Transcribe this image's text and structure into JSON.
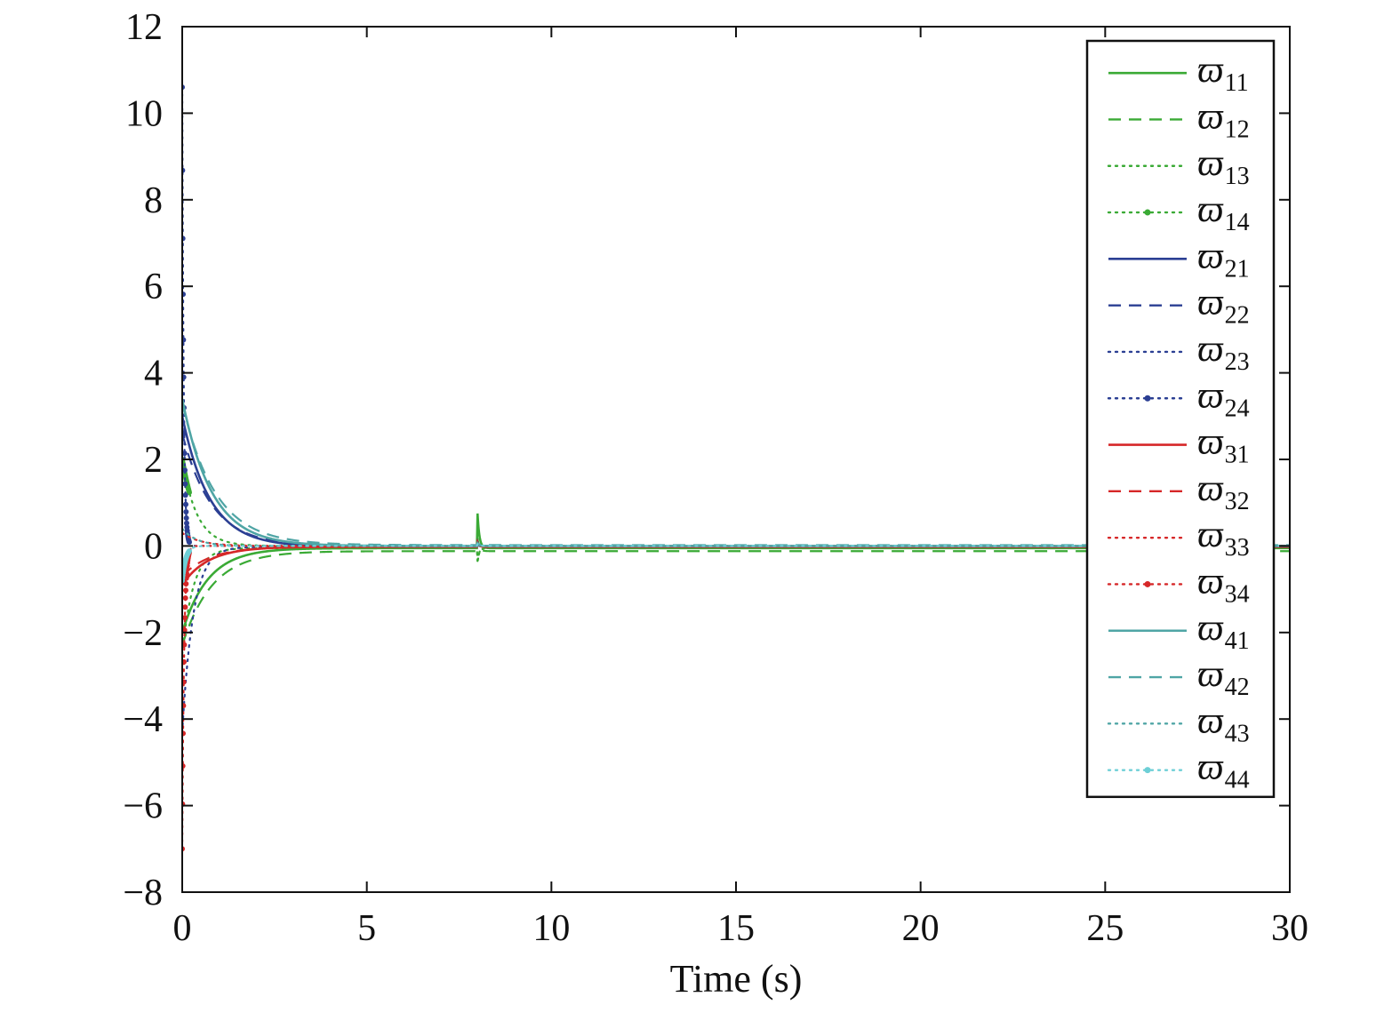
{
  "chart_data": {
    "type": "line",
    "title": "",
    "xlabel": "Time (s)",
    "ylabel": "",
    "xlim": [
      0,
      30
    ],
    "ylim": [
      -8,
      12
    ],
    "xticks": [
      0,
      5,
      10,
      15,
      20,
      25,
      30
    ],
    "yticks": [
      -8,
      -6,
      -4,
      -2,
      0,
      2,
      4,
      6,
      8,
      10,
      12
    ],
    "xtick_labels": [
      "0",
      "5",
      "10",
      "15",
      "20",
      "25",
      "30"
    ],
    "ytick_labels": [
      "−8",
      "−6",
      "−4",
      "−2",
      "0",
      "2",
      "4",
      "6",
      "8",
      "10",
      "12"
    ],
    "grid": false,
    "legend_position": "top-right",
    "event_time": 8,
    "series": [
      {
        "name": "ϖ",
        "sub": "11",
        "color": "#3aaa35",
        "style": "solid",
        "initial": -2.0,
        "tau": 0.7,
        "final": -0.05,
        "spike": 0.8
      },
      {
        "name": "ϖ",
        "sub": "12",
        "color": "#3aaa35",
        "style": "dashed",
        "initial": -2.3,
        "tau": 0.8,
        "final": -0.12,
        "spike": 0.3
      },
      {
        "name": "ϖ",
        "sub": "13",
        "color": "#3aaa35",
        "style": "dotted",
        "initial": -2.5,
        "tau": 0.3,
        "final": -0.05,
        "spike": -0.3
      },
      {
        "name": "ϖ",
        "sub": "14",
        "color": "#3aaa35",
        "style": "dotted-marker",
        "initial": 2.0,
        "tau": 0.4,
        "final": 0.0,
        "spike": -0.4
      },
      {
        "name": "ϖ",
        "sub": "21",
        "color": "#2b3f93",
        "style": "solid",
        "initial": 3.0,
        "tau": 0.75,
        "final": -0.02,
        "spike": 0.1
      },
      {
        "name": "ϖ",
        "sub": "22",
        "color": "#2b3f93",
        "style": "dashed",
        "initial": 2.6,
        "tau": 0.8,
        "final": 0.0,
        "spike": 0.1
      },
      {
        "name": "ϖ",
        "sub": "23",
        "color": "#2b3f93",
        "style": "dotted",
        "initial": -4.3,
        "tau": 0.3,
        "final": -0.02,
        "spike": 0.05
      },
      {
        "name": "ϖ",
        "sub": "24",
        "color": "#2b3f93",
        "style": "dotted-marker",
        "initial": 10.6,
        "tau": 0.04,
        "final": 0.0,
        "spike": 0.05
      },
      {
        "name": "ϖ",
        "sub": "31",
        "color": "#d62728",
        "style": "solid",
        "initial": -0.9,
        "tau": 0.7,
        "final": -0.02,
        "spike": 0.1
      },
      {
        "name": "ϖ",
        "sub": "32",
        "color": "#d62728",
        "style": "dashed",
        "initial": -0.7,
        "tau": 0.75,
        "final": -0.02,
        "spike": 0.05
      },
      {
        "name": "ϖ",
        "sub": "33",
        "color": "#d62728",
        "style": "dotted",
        "initial": 0.3,
        "tau": 0.5,
        "final": 0.0,
        "spike": 0.05
      },
      {
        "name": "ϖ",
        "sub": "34",
        "color": "#d62728",
        "style": "dotted-marker",
        "initial": -7.0,
        "tau": 0.05,
        "final": 0.0,
        "spike": 0.05
      },
      {
        "name": "ϖ",
        "sub": "41",
        "color": "#4fa5a5",
        "style": "solid",
        "initial": 3.4,
        "tau": 0.8,
        "final": 0.0,
        "spike": 0.05
      },
      {
        "name": "ϖ",
        "sub": "42",
        "color": "#4fa5a5",
        "style": "dashed",
        "initial": 3.3,
        "tau": 0.9,
        "final": 0.02,
        "spike": 0.05
      },
      {
        "name": "ϖ",
        "sub": "43",
        "color": "#4fa5a5",
        "style": "dotted",
        "initial": 0.4,
        "tau": 0.4,
        "final": 0.0,
        "spike": 0.05
      },
      {
        "name": "ϖ",
        "sub": "44",
        "color": "#6dcfd6",
        "style": "dotted-marker",
        "initial": -0.8,
        "tau": 0.1,
        "final": 0.0,
        "spike": 0.05
      }
    ]
  }
}
